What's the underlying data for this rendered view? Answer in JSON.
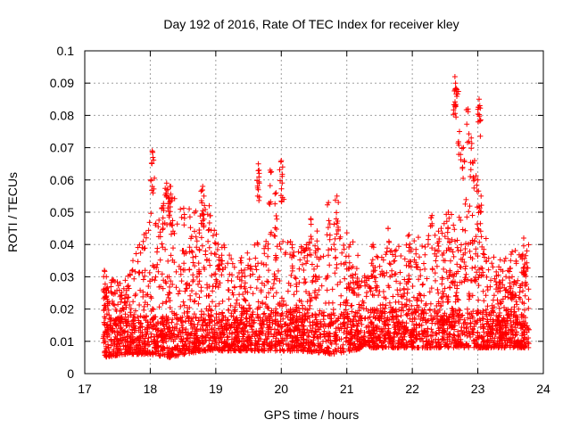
{
  "chart_data": {
    "type": "scatter",
    "title": "Day 192 of 2016, Rate Of TEC Index for receiver kley",
    "xlabel": "GPS time / hours",
    "ylabel": "ROTI / TECUs",
    "xlim": [
      17,
      24
    ],
    "ylim": [
      0,
      0.1
    ],
    "xticks": [
      "17",
      "18",
      "19",
      "20",
      "21",
      "22",
      "23",
      "24"
    ],
    "yticks": [
      "0",
      "0.01",
      "0.02",
      "0.03",
      "0.04",
      "0.05",
      "0.06",
      "0.07",
      "0.08",
      "0.09",
      "0.1"
    ],
    "grid": true,
    "legend": "none",
    "marker": "+",
    "color": "#ff0000",
    "series": [
      {
        "x_range": [
          17.28,
          23.78
        ],
        "density_profile": [
          {
            "x": 17.3,
            "base_low": 0.005,
            "base_high": 0.03
          },
          {
            "x": 17.6,
            "base_low": 0.006,
            "base_high": 0.028
          },
          {
            "x": 18.0,
            "base_low": 0.006,
            "base_high": 0.05
          },
          {
            "x": 18.3,
            "base_low": 0.005,
            "base_high": 0.055
          },
          {
            "x": 18.8,
            "base_low": 0.007,
            "base_high": 0.05
          },
          {
            "x": 19.3,
            "base_low": 0.007,
            "base_high": 0.035
          },
          {
            "x": 19.8,
            "base_low": 0.007,
            "base_high": 0.045
          },
          {
            "x": 20.3,
            "base_low": 0.007,
            "base_high": 0.04
          },
          {
            "x": 20.8,
            "base_low": 0.006,
            "base_high": 0.05
          },
          {
            "x": 21.3,
            "base_low": 0.008,
            "base_high": 0.035
          },
          {
            "x": 21.8,
            "base_low": 0.008,
            "base_high": 0.04
          },
          {
            "x": 22.3,
            "base_low": 0.008,
            "base_high": 0.045
          },
          {
            "x": 22.8,
            "base_low": 0.008,
            "base_high": 0.055
          },
          {
            "x": 23.3,
            "base_low": 0.008,
            "base_high": 0.035
          },
          {
            "x": 23.7,
            "base_low": 0.008,
            "base_high": 0.04
          }
        ],
        "peaks": [
          [
            17.3,
            0.032
          ],
          [
            17.33,
            0.03
          ],
          [
            18.03,
            0.069
          ],
          [
            18.04,
            0.067
          ],
          [
            18.25,
            0.059
          ],
          [
            18.27,
            0.057
          ],
          [
            18.3,
            0.058
          ],
          [
            18.2,
            0.052
          ],
          [
            18.8,
            0.058
          ],
          [
            18.82,
            0.055
          ],
          [
            18.9,
            0.052
          ],
          [
            19.05,
            0.036
          ],
          [
            19.65,
            0.065
          ],
          [
            19.66,
            0.063
          ],
          [
            19.83,
            0.063
          ],
          [
            19.92,
            0.056
          ],
          [
            20.0,
            0.066
          ],
          [
            20.02,
            0.064
          ],
          [
            20.45,
            0.048
          ],
          [
            20.72,
            0.053
          ],
          [
            20.85,
            0.055
          ],
          [
            21.4,
            0.04
          ],
          [
            21.63,
            0.045
          ],
          [
            21.95,
            0.043
          ],
          [
            22.3,
            0.049
          ],
          [
            22.55,
            0.05
          ],
          [
            22.65,
            0.092
          ],
          [
            22.66,
            0.09
          ],
          [
            22.68,
            0.088
          ],
          [
            22.72,
            0.075
          ],
          [
            22.78,
            0.07
          ],
          [
            22.85,
            0.082
          ],
          [
            22.9,
            0.073
          ],
          [
            22.95,
            0.066
          ],
          [
            23.0,
            0.06
          ],
          [
            23.02,
            0.085
          ],
          [
            23.03,
            0.083
          ],
          [
            23.05,
            0.055
          ],
          [
            23.5,
            0.035
          ],
          [
            23.7,
            0.042
          ],
          [
            23.75,
            0.038
          ]
        ]
      }
    ]
  }
}
